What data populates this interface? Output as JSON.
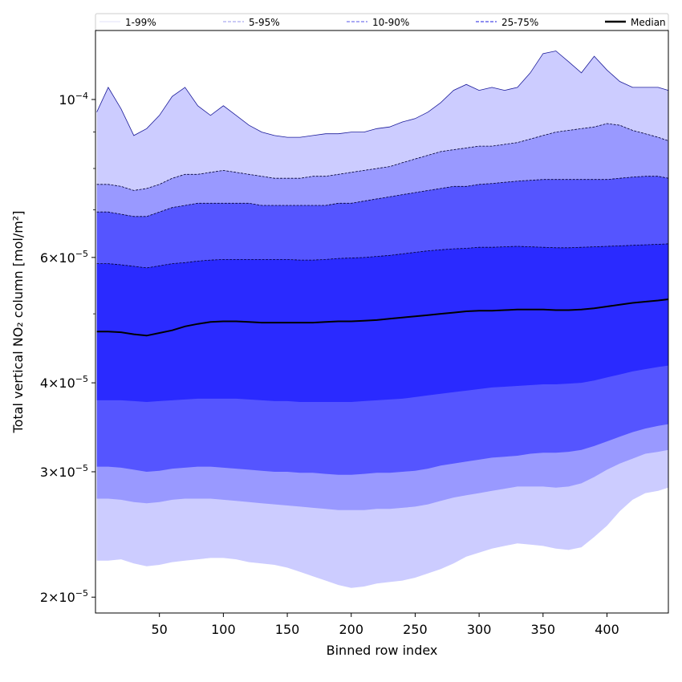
{
  "chart_data": {
    "type": "area",
    "title": "",
    "xlabel": "Binned row index",
    "ylabel": "Total vertical NO₂ column [mol/m²]",
    "yscale": "log",
    "xlim": [
      0,
      448
    ],
    "ylim": [
      1.9e-05,
      0.000125
    ],
    "grid": false,
    "legend_position": "top",
    "x_ticks": [
      50,
      100,
      150,
      200,
      250,
      300,
      350,
      400
    ],
    "x_tick_labels": [
      "50",
      "100",
      "150",
      "200",
      "250",
      "300",
      "350",
      "400"
    ],
    "y_ticks": [
      2e-05,
      3e-05,
      4e-05,
      6e-05,
      0.0001
    ],
    "y_tick_labels": [
      {
        "mantissa": "2",
        "exponent": "−5"
      },
      {
        "mantissa": "3",
        "exponent": "−5"
      },
      {
        "mantissa": "4",
        "exponent": "−5"
      },
      {
        "mantissa": "6",
        "exponent": "−5"
      },
      {
        "mantissa": "",
        "exponent": "−4"
      }
    ],
    "legend": [
      {
        "label": "1-99%",
        "color": "#e6e6fb",
        "style": "solid"
      },
      {
        "label": "5-95%",
        "color": "#aaaaf0",
        "style": "dashed"
      },
      {
        "label": "10-90%",
        "color": "#7777ee",
        "style": "dashed"
      },
      {
        "label": "25-75%",
        "color": "#4a4ae8",
        "style": "dashed"
      },
      {
        "label": "Median",
        "color": "#000000",
        "style": "solid"
      }
    ],
    "x": [
      1,
      10,
      20,
      30,
      40,
      50,
      60,
      70,
      80,
      90,
      100,
      110,
      120,
      130,
      140,
      150,
      160,
      170,
      180,
      190,
      200,
      210,
      220,
      230,
      240,
      250,
      260,
      270,
      280,
      290,
      300,
      310,
      320,
      330,
      340,
      350,
      360,
      370,
      380,
      390,
      400,
      410,
      420,
      430,
      440,
      448
    ],
    "bands": [
      {
        "name": "1-99%",
        "color": "#ccccff",
        "lower": [
          2.25e-05,
          2.25e-05,
          2.26e-05,
          2.23e-05,
          2.21e-05,
          2.22e-05,
          2.24e-05,
          2.25e-05,
          2.26e-05,
          2.27e-05,
          2.27e-05,
          2.26e-05,
          2.24e-05,
          2.23e-05,
          2.22e-05,
          2.2e-05,
          2.17e-05,
          2.14e-05,
          2.11e-05,
          2.08e-05,
          2.06e-05,
          2.07e-05,
          2.09e-05,
          2.1e-05,
          2.11e-05,
          2.13e-05,
          2.16e-05,
          2.19e-05,
          2.23e-05,
          2.28e-05,
          2.31e-05,
          2.34e-05,
          2.36e-05,
          2.38e-05,
          2.37e-05,
          2.36e-05,
          2.34e-05,
          2.33e-05,
          2.35e-05,
          2.43e-05,
          2.52e-05,
          2.64e-05,
          2.74e-05,
          2.8e-05,
          2.82e-05,
          2.85e-05
        ],
        "upper": [
          9.6e-05,
          0.000104,
          9.7e-05,
          8.9e-05,
          9.1e-05,
          9.5e-05,
          0.000101,
          0.000104,
          9.8e-05,
          9.5e-05,
          9.8e-05,
          9.5e-05,
          9.2e-05,
          9e-05,
          8.9e-05,
          8.85e-05,
          8.85e-05,
          8.9e-05,
          8.95e-05,
          8.95e-05,
          9e-05,
          9e-05,
          9.1e-05,
          9.15e-05,
          9.3e-05,
          9.4e-05,
          9.6e-05,
          9.9e-05,
          0.000103,
          0.000105,
          0.000103,
          0.000104,
          0.000103,
          0.000104,
          0.000109,
          0.000116,
          0.000117,
          0.000113,
          0.000109,
          0.000115,
          0.00011,
          0.000106,
          0.000104,
          0.000104,
          0.000104,
          0.000103
        ]
      },
      {
        "name": "5-95%",
        "color": "#9999ff",
        "lower": [
          2.75e-05,
          2.75e-05,
          2.74e-05,
          2.72e-05,
          2.71e-05,
          2.72e-05,
          2.74e-05,
          2.75e-05,
          2.75e-05,
          2.75e-05,
          2.74e-05,
          2.73e-05,
          2.72e-05,
          2.71e-05,
          2.7e-05,
          2.69e-05,
          2.68e-05,
          2.67e-05,
          2.66e-05,
          2.65e-05,
          2.65e-05,
          2.65e-05,
          2.66e-05,
          2.66e-05,
          2.67e-05,
          2.68e-05,
          2.7e-05,
          2.73e-05,
          2.76e-05,
          2.78e-05,
          2.8e-05,
          2.82e-05,
          2.84e-05,
          2.86e-05,
          2.86e-05,
          2.86e-05,
          2.85e-05,
          2.86e-05,
          2.89e-05,
          2.95e-05,
          3.02e-05,
          3.08e-05,
          3.13e-05,
          3.18e-05,
          3.2e-05,
          3.22e-05
        ],
        "upper": [
          7.6e-05,
          7.6e-05,
          7.55e-05,
          7.45e-05,
          7.5e-05,
          7.6e-05,
          7.75e-05,
          7.85e-05,
          7.85e-05,
          7.9e-05,
          7.95e-05,
          7.9e-05,
          7.85e-05,
          7.8e-05,
          7.75e-05,
          7.75e-05,
          7.75e-05,
          7.8e-05,
          7.8e-05,
          7.85e-05,
          7.9e-05,
          7.95e-05,
          8e-05,
          8.05e-05,
          8.15e-05,
          8.25e-05,
          8.35e-05,
          8.45e-05,
          8.5e-05,
          8.55e-05,
          8.6e-05,
          8.6e-05,
          8.65e-05,
          8.7e-05,
          8.8e-05,
          8.9e-05,
          9e-05,
          9.05e-05,
          9.1e-05,
          9.15e-05,
          9.25e-05,
          9.2e-05,
          9.05e-05,
          8.95e-05,
          8.85e-05,
          8.75e-05
        ]
      },
      {
        "name": "10-90%",
        "color": "#5555ff",
        "lower": [
          3.05e-05,
          3.05e-05,
          3.04e-05,
          3.02e-05,
          3e-05,
          3.01e-05,
          3.03e-05,
          3.04e-05,
          3.05e-05,
          3.05e-05,
          3.04e-05,
          3.03e-05,
          3.02e-05,
          3.01e-05,
          3e-05,
          3e-05,
          2.99e-05,
          2.99e-05,
          2.98e-05,
          2.97e-05,
          2.97e-05,
          2.98e-05,
          2.99e-05,
          2.99e-05,
          3e-05,
          3.01e-05,
          3.03e-05,
          3.06e-05,
          3.08e-05,
          3.1e-05,
          3.12e-05,
          3.14e-05,
          3.15e-05,
          3.16e-05,
          3.18e-05,
          3.19e-05,
          3.19e-05,
          3.2e-05,
          3.22e-05,
          3.26e-05,
          3.31e-05,
          3.36e-05,
          3.41e-05,
          3.45e-05,
          3.48e-05,
          3.5e-05
        ],
        "upper": [
          6.95e-05,
          6.95e-05,
          6.9e-05,
          6.85e-05,
          6.85e-05,
          6.95e-05,
          7.05e-05,
          7.1e-05,
          7.15e-05,
          7.15e-05,
          7.15e-05,
          7.15e-05,
          7.15e-05,
          7.1e-05,
          7.1e-05,
          7.1e-05,
          7.1e-05,
          7.1e-05,
          7.1e-05,
          7.15e-05,
          7.15e-05,
          7.2e-05,
          7.25e-05,
          7.3e-05,
          7.35e-05,
          7.4e-05,
          7.45e-05,
          7.5e-05,
          7.55e-05,
          7.55e-05,
          7.6e-05,
          7.62e-05,
          7.65e-05,
          7.68e-05,
          7.7e-05,
          7.72e-05,
          7.72e-05,
          7.72e-05,
          7.72e-05,
          7.72e-05,
          7.72e-05,
          7.75e-05,
          7.78e-05,
          7.8e-05,
          7.8e-05,
          7.75e-05
        ]
      },
      {
        "name": "25-75%",
        "color": "#2a2aff",
        "lower": [
          3.78e-05,
          3.78e-05,
          3.78e-05,
          3.77e-05,
          3.76e-05,
          3.77e-05,
          3.78e-05,
          3.79e-05,
          3.8e-05,
          3.8e-05,
          3.8e-05,
          3.8e-05,
          3.79e-05,
          3.78e-05,
          3.77e-05,
          3.77e-05,
          3.76e-05,
          3.76e-05,
          3.76e-05,
          3.76e-05,
          3.76e-05,
          3.77e-05,
          3.78e-05,
          3.79e-05,
          3.8e-05,
          3.82e-05,
          3.84e-05,
          3.86e-05,
          3.88e-05,
          3.9e-05,
          3.92e-05,
          3.94e-05,
          3.95e-05,
          3.96e-05,
          3.97e-05,
          3.98e-05,
          3.98e-05,
          3.99e-05,
          4e-05,
          4.03e-05,
          4.07e-05,
          4.11e-05,
          4.15e-05,
          4.18e-05,
          4.21e-05,
          4.23e-05
        ],
        "upper": [
          5.88e-05,
          5.88e-05,
          5.86e-05,
          5.83e-05,
          5.8e-05,
          5.84e-05,
          5.88e-05,
          5.9e-05,
          5.93e-05,
          5.95e-05,
          5.96e-05,
          5.96e-05,
          5.96e-05,
          5.96e-05,
          5.96e-05,
          5.96e-05,
          5.95e-05,
          5.95e-05,
          5.96e-05,
          5.98e-05,
          5.99e-05,
          6e-05,
          6.02e-05,
          6.04e-05,
          6.07e-05,
          6.1e-05,
          6.13e-05,
          6.15e-05,
          6.17e-05,
          6.18e-05,
          6.2e-05,
          6.2e-05,
          6.21e-05,
          6.22e-05,
          6.21e-05,
          6.2e-05,
          6.19e-05,
          6.19e-05,
          6.2e-05,
          6.21e-05,
          6.22e-05,
          6.23e-05,
          6.24e-05,
          6.25e-05,
          6.26e-05,
          6.27e-05
        ]
      }
    ],
    "median": {
      "name": "Median",
      "color": "#000000",
      "values": [
        4.72e-05,
        4.72e-05,
        4.71e-05,
        4.68e-05,
        4.66e-05,
        4.7e-05,
        4.74e-05,
        4.8e-05,
        4.84e-05,
        4.87e-05,
        4.88e-05,
        4.88e-05,
        4.87e-05,
        4.86e-05,
        4.86e-05,
        4.86e-05,
        4.86e-05,
        4.86e-05,
        4.87e-05,
        4.88e-05,
        4.88e-05,
        4.89e-05,
        4.9e-05,
        4.92e-05,
        4.94e-05,
        4.96e-05,
        4.98e-05,
        5e-05,
        5.02e-05,
        5.04e-05,
        5.05e-05,
        5.05e-05,
        5.06e-05,
        5.07e-05,
        5.07e-05,
        5.07e-05,
        5.06e-05,
        5.06e-05,
        5.07e-05,
        5.09e-05,
        5.12e-05,
        5.15e-05,
        5.18e-05,
        5.2e-05,
        5.22e-05,
        5.24e-05
      ]
    }
  }
}
